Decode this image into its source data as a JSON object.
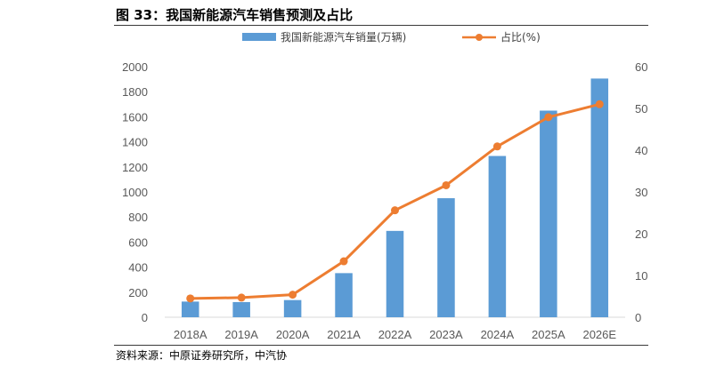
{
  "figure": {
    "title": "图 33：我国新能源汽车销售预测及占比",
    "source": "资料来源：中原证券研究所，中汽协"
  },
  "chart_data": {
    "type": "bar+line",
    "categories": [
      "2018A",
      "2019A",
      "2020A",
      "2021A",
      "2022A",
      "2023A",
      "2024A",
      "2025A",
      "2026E"
    ],
    "series": [
      {
        "name": "我国新能源汽车销量(万辆)",
        "type": "bar",
        "axis": "left",
        "color": "#5B9BD5",
        "values": [
          125,
          121,
          137,
          352,
          689,
          950,
          1287,
          1649,
          1905
        ]
      },
      {
        "name": "占比(%)",
        "type": "line",
        "axis": "right",
        "color": "#ED7D31",
        "values": [
          4.5,
          4.7,
          5.4,
          13.4,
          25.6,
          31.6,
          40.9,
          47.9,
          51.0
        ]
      }
    ],
    "y_left": {
      "ticks": [
        "0",
        "200",
        "400",
        "600",
        "800",
        "1000",
        "1200",
        "1400",
        "1600",
        "1800",
        "2000"
      ],
      "ylim": [
        0,
        2000
      ]
    },
    "y_right": {
      "ticks": [
        "0",
        "10",
        "20",
        "30",
        "40",
        "50",
        "60"
      ],
      "ylim": [
        0,
        60
      ]
    },
    "legend": "top-center",
    "grid": false
  }
}
